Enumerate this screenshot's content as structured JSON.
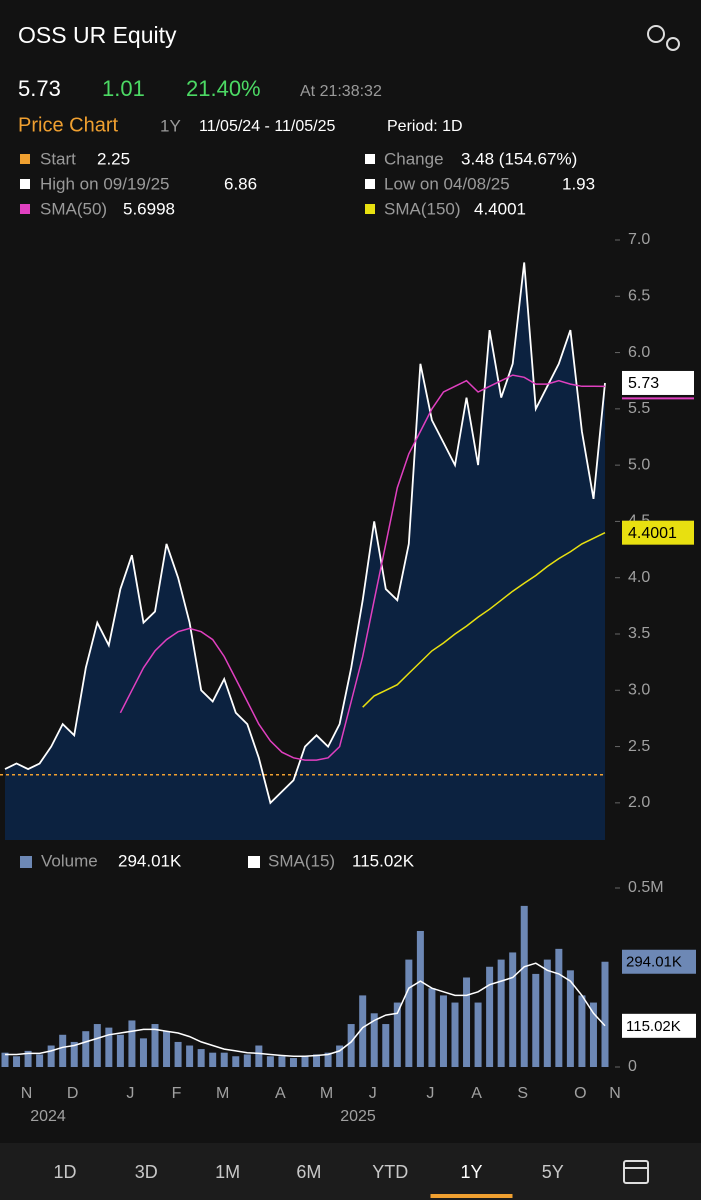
{
  "header": {
    "title": "OSS UR Equity",
    "last": "5.73",
    "change": "1.01",
    "change_pct": "21.40%",
    "time": "At 21:38:32"
  },
  "chart_header": {
    "title": "Price Chart",
    "range": "1Y",
    "dates": "11/05/24 - 11/05/25",
    "period": "Period: 1D"
  },
  "legend": {
    "start": "Start",
    "change": "Change",
    "change_value": "3.48 (154.67%)",
    "high": "High on 09/19/25",
    "low": "Low on 04/08/25"
  },
  "tabs": [
    {
      "label": "1D"
    },
    {
      "label": "3D"
    },
    {
      "label": "1M"
    },
    {
      "label": "6M"
    },
    {
      "label": "YTD"
    },
    {
      "label": "1Y",
      "selected": true
    },
    {
      "label": "5Y"
    }
  ],
  "chart_data": [
    {
      "type": "line",
      "start": 2.25,
      "start_color": "#f0a030",
      "high": 6.86,
      "low": 1.93,
      "fill": "#0c2240",
      "ylim": [
        1.67,
        7.0
      ],
      "yticks": [
        {
          "value": 2,
          "label": "2.0"
        },
        2.5,
        {
          "value": 3,
          "label": "3.0"
        },
        3.5,
        {
          "value": 4,
          "label": "4.0"
        },
        4.5,
        {
          "value": 5,
          "label": "5.0"
        },
        5.5,
        {
          "value": 6,
          "label": "6.0"
        },
        6.5,
        {
          "value": 7,
          "label": "7.0"
        }
      ],
      "series": [
        {
          "color": "#ffffff",
          "values": [
            2.3,
            2.35,
            2.3,
            2.35,
            2.5,
            2.7,
            2.6,
            3.2,
            3.6,
            3.4,
            3.9,
            4.2,
            3.6,
            3.7,
            4.3,
            4.0,
            3.6,
            3.0,
            2.9,
            3.1,
            2.8,
            2.7,
            2.4,
            2.0,
            2.1,
            2.2,
            2.5,
            2.6,
            2.5,
            2.7,
            3.2,
            3.8,
            4.5,
            3.9,
            3.8,
            4.3,
            5.9,
            5.4,
            5.2,
            5.0,
            5.6,
            5.0,
            6.2,
            5.6,
            5.9,
            6.8,
            5.5,
            5.7,
            5.9,
            6.2,
            5.3,
            4.7,
            5.73
          ]
        },
        {
          "name": "SMA(50)",
          "color": "#e040c0",
          "values": [
            null,
            null,
            null,
            null,
            null,
            null,
            null,
            null,
            null,
            null,
            2.8,
            3.0,
            3.2,
            3.35,
            3.45,
            3.52,
            3.55,
            3.52,
            3.45,
            3.3,
            3.1,
            2.9,
            2.7,
            2.55,
            2.45,
            2.4,
            2.38,
            2.38,
            2.4,
            2.5,
            2.9,
            3.3,
            3.8,
            4.3,
            4.8,
            5.1,
            5.3,
            5.5,
            5.65,
            5.7,
            5.75,
            5.65,
            5.7,
            5.75,
            5.8,
            5.78,
            5.72,
            5.72,
            5.75,
            5.72,
            5.7,
            5.7,
            5.6998
          ]
        },
        {
          "name": "SMA(150)",
          "color": "#e8e010",
          "values": [
            null,
            null,
            null,
            null,
            null,
            null,
            null,
            null,
            null,
            null,
            null,
            null,
            null,
            null,
            null,
            null,
            null,
            null,
            null,
            null,
            null,
            null,
            null,
            null,
            null,
            null,
            null,
            null,
            null,
            null,
            null,
            2.85,
            2.95,
            3.0,
            3.05,
            3.15,
            3.25,
            3.35,
            3.42,
            3.5,
            3.57,
            3.65,
            3.72,
            3.8,
            3.88,
            3.95,
            4.02,
            4.1,
            4.17,
            4.23,
            4.3,
            4.35,
            4.4001
          ]
        }
      ]
    },
    {
      "type": "bar",
      "ylim": [
        0,
        500000
      ],
      "yticks": [
        0,
        {
          "value": 500000,
          "label": "0.5M"
        }
      ],
      "categories": [
        null,
        "N",
        null,
        null,
        null,
        "D",
        null,
        null,
        null,
        null,
        "J",
        null,
        null,
        null,
        "F",
        null,
        null,
        null,
        "M",
        null,
        null,
        null,
        null,
        "A",
        null,
        null,
        null,
        "M",
        null,
        null,
        null,
        "J",
        null,
        null,
        null,
        null,
        "J",
        null,
        null,
        null,
        "A",
        null,
        null,
        null,
        "S",
        null,
        null,
        null,
        null,
        "O",
        null,
        null,
        "N"
      ],
      "years": [
        "2024",
        "2025"
      ],
      "series": [
        {
          "name": "Volume",
          "color": "#6d88b5",
          "values": [
            40000,
            30000,
            45000,
            35000,
            60000,
            90000,
            70000,
            100000,
            120000,
            110000,
            90000,
            130000,
            80000,
            120000,
            100000,
            70000,
            60000,
            50000,
            40000,
            40000,
            30000,
            35000,
            60000,
            30000,
            30000,
            25000,
            30000,
            35000,
            40000,
            60000,
            120000,
            200000,
            150000,
            120000,
            180000,
            300000,
            380000,
            220000,
            200000,
            180000,
            250000,
            180000,
            280000,
            300000,
            320000,
            450000,
            260000,
            300000,
            330000,
            270000,
            200000,
            180000,
            294010
          ],
          "value_labels": [
            null,
            null,
            null,
            null,
            null,
            null,
            null,
            null,
            null,
            null,
            null,
            null,
            null,
            null,
            null,
            null,
            null,
            null,
            null,
            null,
            null,
            null,
            null,
            null,
            null,
            null,
            null,
            null,
            null,
            null,
            null,
            null,
            null,
            null,
            null,
            null,
            null,
            null,
            null,
            null,
            null,
            null,
            null,
            null,
            null,
            null,
            null,
            null,
            null,
            null,
            null,
            null,
            "294.01K"
          ]
        },
        {
          "name": "SMA(15)",
          "color": "#ffffff",
          "values": [
            35000,
            35000,
            38000,
            38000,
            45000,
            55000,
            60000,
            70000,
            80000,
            90000,
            95000,
            100000,
            105000,
            105000,
            100000,
            95000,
            85000,
            70000,
            60000,
            50000,
            45000,
            40000,
            38000,
            35000,
            32000,
            30000,
            30000,
            32000,
            35000,
            45000,
            70000,
            110000,
            130000,
            145000,
            150000,
            220000,
            240000,
            220000,
            210000,
            200000,
            200000,
            210000,
            230000,
            240000,
            250000,
            280000,
            290000,
            270000,
            260000,
            240000,
            200000,
            150000,
            115020
          ],
          "value_labels": [
            null,
            null,
            null,
            null,
            null,
            null,
            null,
            null,
            null,
            null,
            null,
            null,
            null,
            null,
            null,
            null,
            null,
            null,
            null,
            null,
            null,
            null,
            null,
            null,
            null,
            null,
            null,
            null,
            null,
            null,
            null,
            null,
            null,
            null,
            null,
            null,
            null,
            null,
            null,
            null,
            null,
            null,
            null,
            null,
            null,
            null,
            null,
            null,
            null,
            null,
            null,
            null,
            "115.02K"
          ]
        }
      ]
    }
  ]
}
